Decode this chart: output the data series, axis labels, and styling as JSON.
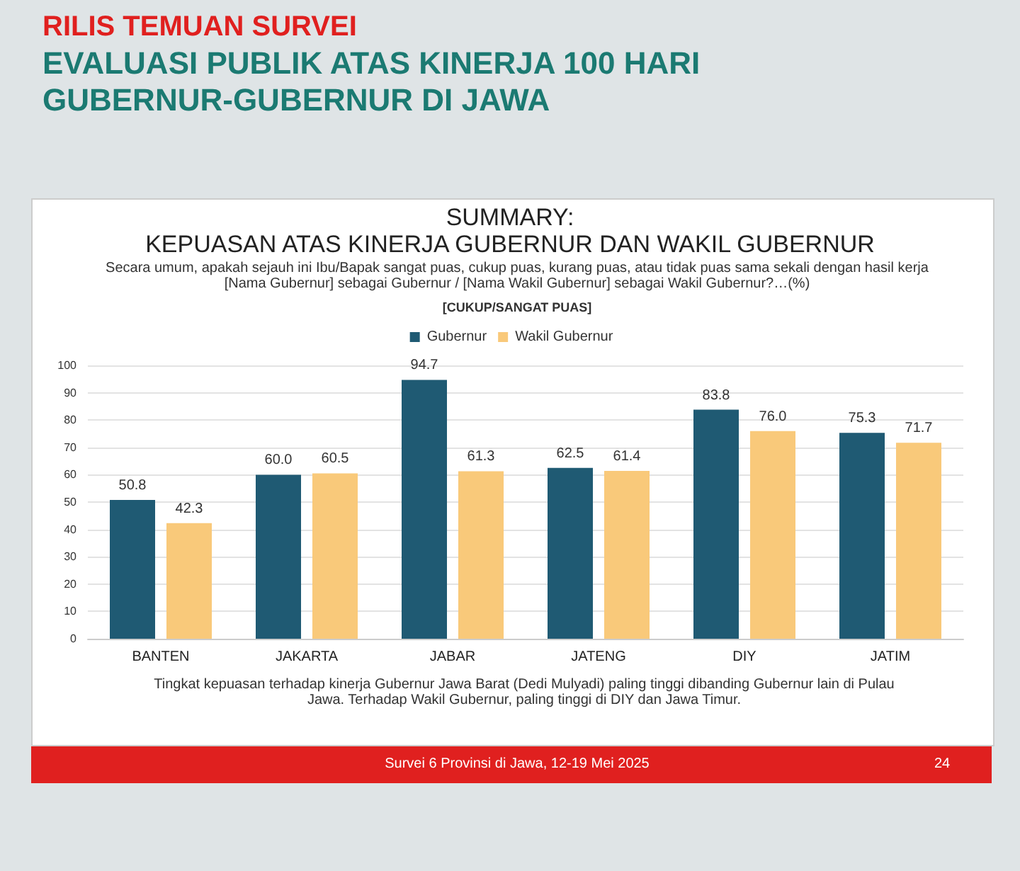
{
  "chart_data": {
    "type": "bar",
    "title": "EVALUASI PUBLIK ATAS KINERJA 100 HARI\nGUBERNUR-GUBERNUR DI JAWA",
    "subtitle": "SUMMARY:\nKEPUASAN ATAS KINERJA GUBERNUR DAN WAKIL GUBERNUR",
    "categories": [
      "BANTEN",
      "JAKARTA",
      "JABAR",
      "JATENG",
      "DIY",
      "JATIM"
    ],
    "series": [
      {
        "name": "Gubernur",
        "color": "#1f5a73",
        "values": [
          50.8,
          60.0,
          94.7,
          62.5,
          83.8,
          75.3
        ],
        "value_labels": [
          "50.8",
          "60.0",
          "94.7",
          "62.5",
          "83.8",
          "75.3"
        ]
      },
      {
        "name": "Wakil Gubernur",
        "color": "#f9c97a",
        "values": [
          42.3,
          60.5,
          61.3,
          61.4,
          76.0,
          71.7
        ],
        "value_labels": [
          "42.3",
          "60.5",
          "61.3",
          "61.4",
          "76.0",
          "71.7"
        ]
      }
    ],
    "ylim": [
      0,
      100
    ],
    "yticks": [
      0,
      10,
      20,
      30,
      40,
      50,
      60,
      70,
      80,
      90,
      100
    ],
    "grid": "y",
    "legend": "top",
    "annotations": [
      "RILIS TEMUAN SURVEI",
      "Secara umum, apakah sejauh ini Ibu/Bapak sangat puas, cukup puas, kurang puas, atau tidak puas sama sekali dengan hasil kerja [Nama Gubernur] sebagai Gubernur / [Nama Wakil Gubernur] sebagai Wakil Gubernur?…(%)",
      "[CUKUP/SANGAT PUAS]",
      "Tingkat kepuasan terhadap kinerja Gubernur Jawa Barat (Dedi Mulyadi) paling tinggi dibanding Gubernur lain di Pulau Jawa. Terhadap Wakil Gubernur, paling tinggi di DIY dan Jawa Timur.",
      "Survei 6 Provinsi di Jawa, 12-19 Mei 2025",
      "24"
    ]
  }
}
